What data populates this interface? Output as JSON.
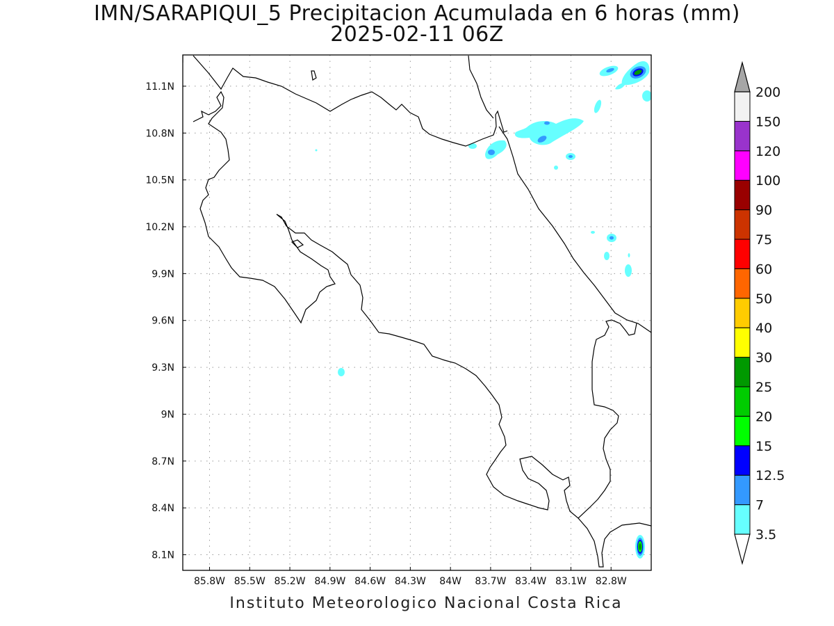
{
  "title": {
    "line1": "IMN/SARAPIQUI_5 Precipitacion Acumulada en 6 horas (mm)",
    "line2": "2025-02-11 06Z"
  },
  "footer": "Instituto Meteorologico Nacional Costa Rica",
  "map": {
    "lon_range": [
      -86.0,
      -82.5
    ],
    "lat_range": [
      8.0,
      11.3
    ],
    "x_ticks": [
      {
        "value": -85.8,
        "label": "85.8W"
      },
      {
        "value": -85.5,
        "label": "85.5W"
      },
      {
        "value": -85.2,
        "label": "85.2W"
      },
      {
        "value": -84.9,
        "label": "84.9W"
      },
      {
        "value": -84.6,
        "label": "84.6W"
      },
      {
        "value": -84.3,
        "label": "84.3W"
      },
      {
        "value": -84.0,
        "label": "84W"
      },
      {
        "value": -83.7,
        "label": "83.7W"
      },
      {
        "value": -83.4,
        "label": "83.4W"
      },
      {
        "value": -83.1,
        "label": "83.1W"
      },
      {
        "value": -82.8,
        "label": "82.8W"
      }
    ],
    "y_ticks": [
      {
        "value": 11.1,
        "label": "11.1N"
      },
      {
        "value": 10.8,
        "label": "10.8N"
      },
      {
        "value": 10.5,
        "label": "10.5N"
      },
      {
        "value": 10.2,
        "label": "10.2N"
      },
      {
        "value": 9.9,
        "label": "9.9N"
      },
      {
        "value": 9.6,
        "label": "9.6N"
      },
      {
        "value": 9.3,
        "label": "9.3N"
      },
      {
        "value": 9.0,
        "label": "9N"
      },
      {
        "value": 8.7,
        "label": "8.7N"
      },
      {
        "value": 8.4,
        "label": "8.4N"
      },
      {
        "value": 8.1,
        "label": "8.1N"
      }
    ],
    "grid": true,
    "coastline_color": "#000000"
  },
  "colorbar": {
    "levels": [
      "3.5",
      "7",
      "12.5",
      "15",
      "20",
      "25",
      "30",
      "40",
      "50",
      "60",
      "75",
      "90",
      "100",
      "120",
      "150",
      "200"
    ],
    "colors": [
      "#66ffff",
      "#3399ff",
      "#0000ff",
      "#00ff00",
      "#00cc00",
      "#009900",
      "#ffff00",
      "#ffcc00",
      "#ff6600",
      "#ff0000",
      "#cc3300",
      "#990000",
      "#ff00ff",
      "#9933cc",
      "#f2f2f2",
      "#a6a6a6"
    ],
    "under_color": "#ffffff"
  },
  "precip_cells": [
    {
      "lon": -82.75,
      "lat": 11.17,
      "max": "12.5"
    },
    {
      "lon": -82.9,
      "lat": 11.17,
      "max": "7"
    },
    {
      "lon": -83.3,
      "lat": 10.78,
      "max": "7"
    },
    {
      "lon": -83.68,
      "lat": 10.71,
      "max": "7"
    },
    {
      "lon": -83.1,
      "lat": 10.65,
      "max": "7"
    },
    {
      "lon": -82.87,
      "lat": 10.13,
      "max": "7"
    },
    {
      "lon": -82.65,
      "lat": 8.15,
      "max": "20"
    },
    {
      "lon": -84.83,
      "lat": 9.27,
      "max": "3.5"
    }
  ]
}
